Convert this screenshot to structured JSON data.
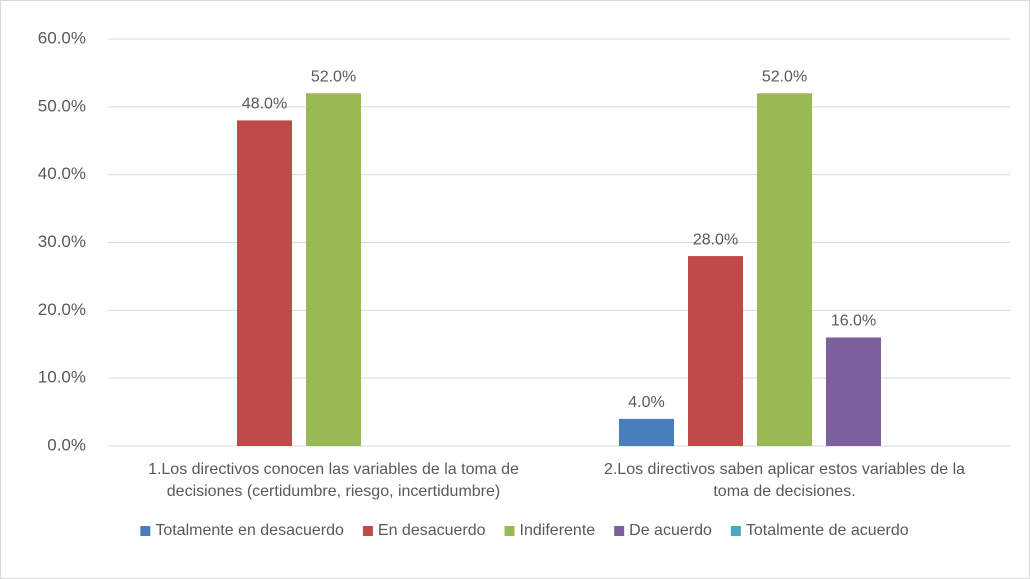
{
  "chart_data": {
    "type": "bar",
    "categories": [
      [
        "1.Los directivos conocen las variables de la toma de",
        "decisiones (certidumbre, riesgo, incertidumbre)"
      ],
      [
        "2.Los directivos saben aplicar estos variables de la",
        "toma de decisiones."
      ]
    ],
    "series": [
      {
        "name": "Totalmente en desacuerdo",
        "color": "#4a7ebb",
        "values": [
          null,
          4
        ],
        "value_labels": [
          null,
          "4.0%"
        ]
      },
      {
        "name": "En desacuerdo",
        "color": "#be4b48",
        "values": [
          48,
          28
        ],
        "value_labels": [
          "48.0%",
          "28.0%"
        ]
      },
      {
        "name": "Indiferente",
        "color": "#98b954",
        "values": [
          52,
          52
        ],
        "value_labels": [
          "52.0%",
          "52.0%"
        ]
      },
      {
        "name": "De acuerdo",
        "color": "#7d60a0",
        "values": [
          null,
          16
        ],
        "value_labels": [
          null,
          "16.0%"
        ]
      },
      {
        "name": "Totalmente de acuerdo",
        "color": "#46aac5",
        "values": [
          null,
          null
        ],
        "value_labels": [
          null,
          null
        ]
      }
    ],
    "ylim": [
      0,
      60
    ],
    "yticks": [
      {
        "value": 0,
        "label": "0.0%"
      },
      {
        "value": 10,
        "label": "10.0%"
      },
      {
        "value": 20,
        "label": "20.0%"
      },
      {
        "value": 30,
        "label": "30.0%"
      },
      {
        "value": 40,
        "label": "40.0%"
      },
      {
        "value": 50,
        "label": "50.0%"
      },
      {
        "value": 60,
        "label": "60.0%"
      }
    ],
    "grid": true,
    "legend": "bottom"
  }
}
